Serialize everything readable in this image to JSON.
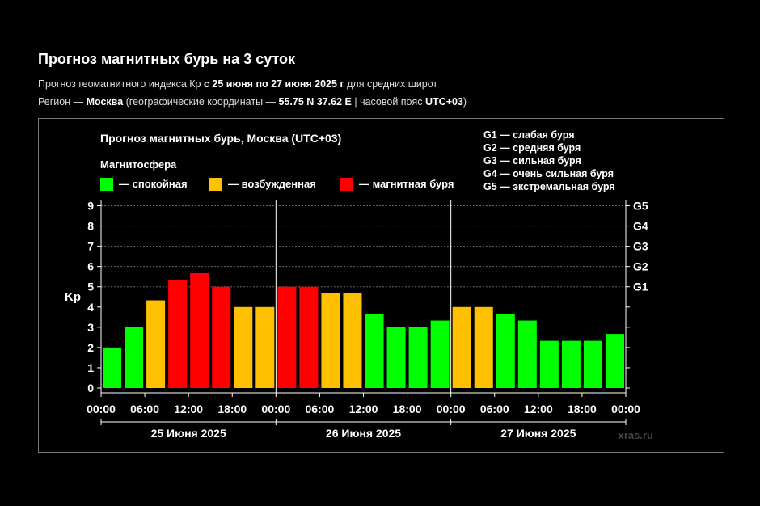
{
  "header": {
    "title": "Прогноз магнитных бурь на 3 суток",
    "line1": {
      "prefix": "Прогноз геомагнитного индекса Кр ",
      "range": "с 25 июня по 27 июня 2025 г",
      "suffix": " для средних широт"
    },
    "line2": {
      "prefix": "Регион — ",
      "region": "Москва",
      "mid": " (географические координаты — ",
      "coords": "55.75 N 37.62 E",
      "mid2": " | часовой пояс ",
      "tz": "UTC+03",
      "suffix": ")"
    }
  },
  "chart_data": {
    "type": "bar",
    "title": "Прогноз магнитных бурь, Москва (UTC+03)",
    "legend_title": "Магнитосфера",
    "legend": [
      {
        "label": "— спокойная",
        "color": "#00ff00"
      },
      {
        "label": "— возбужденная",
        "color": "#ffc000"
      },
      {
        "label": "— магнитная буря",
        "color": "#ff0000"
      }
    ],
    "storm_legend": [
      "G1 — слабая буря",
      "G2 — средняя буря",
      "G3 — сильная буря",
      "G4 — очень сильная буря",
      "G5 — экстремальная буря"
    ],
    "ylabel": "Kp",
    "ylim": [
      0,
      9.3
    ],
    "yticks": [
      "0",
      "1",
      "2",
      "3",
      "4",
      "5",
      "6",
      "7",
      "8",
      "9"
    ],
    "g_labels": [
      {
        "label": "G1",
        "kp": 5
      },
      {
        "label": "G2",
        "kp": 6
      },
      {
        "label": "G3",
        "kp": 7
      },
      {
        "label": "G4",
        "kp": 8
      },
      {
        "label": "G5",
        "kp": 9
      }
    ],
    "days": [
      "25 Июня 2025",
      "26 Июня 2025",
      "27 Июня 2025"
    ],
    "xtick_labels": [
      "00:00",
      "06:00",
      "12:00",
      "18:00",
      "00:00",
      "06:00",
      "12:00",
      "18:00",
      "00:00",
      "06:00",
      "12:00",
      "18:00",
      "00:00"
    ],
    "values": [
      2,
      3,
      4.33,
      5.33,
      5.67,
      5,
      4,
      4,
      5,
      5,
      4.67,
      4.67,
      3.67,
      3,
      3,
      3.33,
      4,
      4,
      3.67,
      3.33,
      2.33,
      2.33,
      2.33,
      2.67
    ],
    "levels": [
      "quiet",
      "quiet",
      "active",
      "storm",
      "storm",
      "storm",
      "active",
      "active",
      "storm",
      "storm",
      "active",
      "active",
      "quiet",
      "quiet",
      "quiet",
      "quiet",
      "active",
      "active",
      "quiet",
      "quiet",
      "quiet",
      "quiet",
      "quiet",
      "quiet"
    ],
    "colors": {
      "quiet": "#00ff00",
      "active": "#ffc000",
      "storm": "#ff0000"
    },
    "grid": true,
    "watermark": "xras.ru"
  }
}
